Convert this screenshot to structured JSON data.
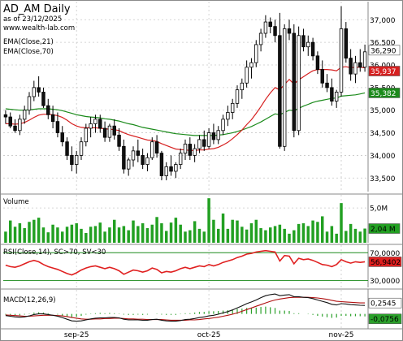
{
  "header": {
    "title": "AD_AM Daily",
    "subtitle": "as of 23/12/2025",
    "source": "www.wealth-lab.com"
  },
  "colors": {
    "up": "#ffffff",
    "down": "#111111",
    "ema21": "#d62020",
    "ema70": "#1a8a1a",
    "volume": "#22a022",
    "rsi": "#e02020",
    "macd": "#111111",
    "signal": "#b01010",
    "hist": "#2aa02a",
    "grid": "#c8c8c8",
    "border": "#8a8a8a"
  },
  "chart_data": [
    {
      "type": "candlestick",
      "panel": "price",
      "legend": [
        "EMA(Close,21)",
        "EMA(Close,70)"
      ],
      "ylim": [
        33200,
        37400
      ],
      "yticks": [
        33500,
        34000,
        34500,
        35000,
        35500,
        36000,
        36500,
        37000
      ],
      "ytick_labels": [
        "33,500",
        "34,000",
        "34,500",
        "35,000",
        "35,500",
        "36,000",
        "36,500",
        "37,000"
      ],
      "x_labels": [
        {
          "i": 15,
          "label": "sep-25"
        },
        {
          "i": 43,
          "label": "oct-25"
        },
        {
          "i": 71,
          "label": "nov-25"
        }
      ],
      "badges": [
        {
          "label": "36,290",
          "value": 36290,
          "color": "#ffffff",
          "text_color": "#000000"
        },
        {
          "label": "35,937",
          "value": 35937,
          "color": "#d62020",
          "text_color": "#ffffff"
        },
        {
          "label": "35,382",
          "value": 35382,
          "color": "#1a8a1a",
          "text_color": "#ffffff"
        }
      ],
      "candles": [
        [
          34900,
          35000,
          34700,
          34850
        ],
        [
          34850,
          34950,
          34600,
          34650
        ],
        [
          34650,
          34800,
          34500,
          34550
        ],
        [
          34550,
          34900,
          34450,
          34800
        ],
        [
          34800,
          35100,
          34700,
          35000
        ],
        [
          35000,
          35400,
          34900,
          35300
        ],
        [
          35300,
          35650,
          35200,
          35500
        ],
        [
          35500,
          35750,
          35300,
          35400
        ],
        [
          35400,
          35500,
          35050,
          35100
        ],
        [
          35100,
          35250,
          34800,
          34900
        ],
        [
          34900,
          35100,
          34600,
          34750
        ],
        [
          34750,
          34950,
          34400,
          34500
        ],
        [
          34500,
          34650,
          34200,
          34300
        ],
        [
          34300,
          34400,
          33900,
          34000
        ],
        [
          34000,
          34200,
          33650,
          33800
        ],
        [
          33800,
          34100,
          33600,
          34000
        ],
        [
          34000,
          34400,
          33900,
          34300
        ],
        [
          34300,
          34700,
          34200,
          34600
        ],
        [
          34600,
          34850,
          34400,
          34700
        ],
        [
          34700,
          34900,
          34500,
          34800
        ],
        [
          34800,
          34900,
          34500,
          34600
        ],
        [
          34600,
          34750,
          34300,
          34400
        ],
        [
          34400,
          34700,
          34300,
          34650
        ],
        [
          34650,
          34800,
          34350,
          34450
        ],
        [
          34450,
          34600,
          34100,
          34200
        ],
        [
          34200,
          34350,
          33600,
          33700
        ],
        [
          33700,
          33950,
          33550,
          33900
        ],
        [
          33900,
          34200,
          33750,
          34100
        ],
        [
          34100,
          34350,
          33850,
          34000
        ],
        [
          34000,
          34150,
          33700,
          33800
        ],
        [
          33800,
          34050,
          33650,
          33950
        ],
        [
          33950,
          34400,
          33900,
          34300
        ],
        [
          34300,
          34450,
          33950,
          34050
        ],
        [
          34050,
          34100,
          33450,
          33550
        ],
        [
          33550,
          33850,
          33450,
          33750
        ],
        [
          33750,
          34000,
          33550,
          33650
        ],
        [
          33650,
          33850,
          33500,
          33800
        ],
        [
          33800,
          34150,
          33700,
          34050
        ],
        [
          34050,
          34350,
          33900,
          34250
        ],
        [
          34250,
          34400,
          33900,
          34000
        ],
        [
          34000,
          34250,
          33850,
          34150
        ],
        [
          34150,
          34450,
          34050,
          34350
        ],
        [
          34350,
          34550,
          34100,
          34200
        ],
        [
          34200,
          34600,
          34150,
          34500
        ],
        [
          34500,
          34700,
          34250,
          34350
        ],
        [
          34350,
          34650,
          34250,
          34550
        ],
        [
          34550,
          34900,
          34450,
          34800
        ],
        [
          34800,
          35100,
          34650,
          34950
        ],
        [
          34950,
          35250,
          34800,
          35150
        ],
        [
          35150,
          35550,
          35050,
          35450
        ],
        [
          35450,
          35700,
          35250,
          35600
        ],
        [
          35600,
          36100,
          35500,
          35950
        ],
        [
          35950,
          36150,
          35700,
          36050
        ],
        [
          36050,
          36550,
          35950,
          36450
        ],
        [
          36450,
          36800,
          36300,
          36700
        ],
        [
          36700,
          37100,
          36600,
          36950
        ],
        [
          36950,
          37050,
          36700,
          36850
        ],
        [
          36850,
          37000,
          36500,
          36650
        ],
        [
          36650,
          37150,
          34150,
          34200
        ],
        [
          34200,
          36900,
          34100,
          36800
        ],
        [
          36800,
          37000,
          36550,
          36700
        ],
        [
          36700,
          36900,
          34400,
          34550
        ],
        [
          34550,
          36850,
          34450,
          36650
        ],
        [
          36650,
          36800,
          36300,
          36400
        ],
        [
          36400,
          36650,
          36200,
          36500
        ],
        [
          36500,
          36600,
          36100,
          36200
        ],
        [
          36200,
          36300,
          35800,
          35900
        ],
        [
          35900,
          36100,
          35500,
          35600
        ],
        [
          35600,
          35800,
          35400,
          35500
        ],
        [
          35500,
          35700,
          35100,
          35200
        ],
        [
          35200,
          35450,
          35050,
          35400
        ],
        [
          35400,
          37300,
          35300,
          36800
        ],
        [
          36800,
          36950,
          36050,
          36150
        ],
        [
          36150,
          36350,
          35650,
          35800
        ],
        [
          35800,
          36200,
          35600,
          36050
        ],
        [
          36050,
          36350,
          35850,
          35950
        ],
        [
          35950,
          36450,
          35850,
          36290
        ]
      ],
      "ema21": [
        34700,
        34700,
        34690,
        34700,
        34730,
        34780,
        34840,
        34890,
        34910,
        34910,
        34900,
        34880,
        34840,
        34780,
        34700,
        34650,
        34620,
        34610,
        34610,
        34610,
        34600,
        34590,
        34580,
        34570,
        34550,
        34500,
        34460,
        34430,
        34400,
        34370,
        34340,
        34330,
        34310,
        34260,
        34220,
        34180,
        34140,
        34130,
        34120,
        34110,
        34110,
        34120,
        34120,
        34140,
        34150,
        34180,
        34230,
        34290,
        34370,
        34460,
        34560,
        34680,
        34790,
        34930,
        35080,
        35240,
        35380,
        35500,
        35450,
        35570,
        35680,
        35580,
        35670,
        35740,
        35810,
        35870,
        35900,
        35900,
        35900,
        35890,
        35870,
        35950,
        35960,
        35940,
        35950,
        35950,
        35937
      ],
      "ema70": [
        35030,
        35020,
        35010,
        35000,
        35000,
        35010,
        35020,
        35030,
        35030,
        35030,
        35020,
        35010,
        34990,
        34960,
        34930,
        34900,
        34880,
        34860,
        34850,
        34840,
        34830,
        34810,
        34800,
        34780,
        34760,
        34730,
        34700,
        34680,
        34650,
        34620,
        34600,
        34580,
        34560,
        34540,
        34520,
        34500,
        34480,
        34470,
        34460,
        34450,
        34440,
        34440,
        34440,
        34440,
        34440,
        34450,
        34460,
        34480,
        34500,
        34530,
        34560,
        34600,
        34640,
        34690,
        34740,
        34800,
        34860,
        34920,
        34900,
        34950,
        35000,
        34990,
        35040,
        35090,
        35130,
        35170,
        35200,
        35220,
        35240,
        35260,
        35270,
        35310,
        35320,
        35330,
        35340,
        35360,
        35382
      ]
    },
    {
      "type": "bar",
      "panel": "volume",
      "legend": [
        "Volume"
      ],
      "ylim": [
        0,
        7.0
      ],
      "yticks": [
        5.0
      ],
      "ytick_labels": [
        "5,0M"
      ],
      "badge": {
        "label": "2,04 M",
        "value": 2.04,
        "color": "#22a022",
        "text_color": "#000000"
      },
      "values": [
        1.6,
        3.2,
        2.3,
        2.8,
        2.1,
        3.0,
        3.3,
        3.6,
        2.2,
        1.5,
        2.6,
        2.2,
        1.6,
        2.3,
        2.6,
        2.8,
        2.0,
        1.4,
        2.3,
        2.4,
        2.9,
        1.6,
        2.2,
        3.3,
        2.2,
        2.4,
        1.8,
        3.2,
        2.4,
        2.8,
        2.1,
        2.6,
        3.7,
        2.8,
        1.7,
        2.9,
        3.6,
        2.6,
        1.6,
        1.8,
        3.1,
        2.0,
        1.6,
        6.4,
        3.3,
        2.0,
        4.2,
        2.0,
        3.3,
        3.2,
        2.3,
        1.9,
        2.8,
        3.3,
        2.1,
        1.8,
        2.2,
        2.4,
        2.6,
        2.0,
        1.3,
        1.8,
        2.7,
        2.8,
        2.4,
        3.2,
        3.0,
        3.8,
        1.6,
        2.4,
        1.3,
        5.7,
        1.7,
        2.7,
        2.0,
        1.6,
        2.04
      ]
    },
    {
      "type": "line",
      "panel": "rsi",
      "legend": [
        "RSI(Close,14), SC>70, SV<30"
      ],
      "ylim": [
        20,
        82
      ],
      "yticks": [
        30,
        70
      ],
      "ytick_labels": [
        "30,0000",
        "70,0000"
      ],
      "badge": {
        "label": "56,9402",
        "value": 56.9402,
        "color": "#e02020",
        "text_color": "#000000"
      },
      "values": [
        52,
        50,
        49,
        51,
        54,
        57,
        59,
        57,
        53,
        50,
        48,
        46,
        43,
        40,
        38,
        41,
        45,
        48,
        50,
        51,
        49,
        47,
        49,
        47,
        44,
        39,
        42,
        45,
        44,
        42,
        44,
        48,
        46,
        41,
        43,
        42,
        44,
        47,
        49,
        47,
        49,
        51,
        50,
        53,
        51,
        53,
        56,
        58,
        60,
        63,
        65,
        68,
        69,
        71,
        72,
        73,
        72,
        71,
        58,
        66,
        65,
        54,
        62,
        60,
        61,
        59,
        56,
        53,
        52,
        50,
        53,
        60,
        57,
        55,
        57,
        56,
        56.94
      ]
    },
    {
      "type": "line",
      "panel": "macd",
      "legend": [
        "MACD(12,26,9)"
      ],
      "ylim": [
        -0.45,
        0.75
      ],
      "badges": [
        {
          "label": "0,2545",
          "value": 0.2545,
          "color": "#ffffff",
          "text_color": "#000000"
        },
        {
          "label": "-0,0756",
          "value": -0.0756,
          "color": "#2aa02a",
          "text_color": "#000000"
        }
      ],
      "macd": [
        -0.05,
        -0.07,
        -0.09,
        -0.1,
        -0.09,
        -0.06,
        -0.02,
        0.0,
        0.0,
        -0.02,
        -0.04,
        -0.07,
        -0.11,
        -0.16,
        -0.21,
        -0.22,
        -0.21,
        -0.18,
        -0.15,
        -0.13,
        -0.12,
        -0.12,
        -0.11,
        -0.11,
        -0.12,
        -0.16,
        -0.18,
        -0.18,
        -0.18,
        -0.19,
        -0.19,
        -0.17,
        -0.16,
        -0.19,
        -0.21,
        -0.22,
        -0.22,
        -0.2,
        -0.17,
        -0.16,
        -0.14,
        -0.11,
        -0.09,
        -0.06,
        -0.04,
        -0.01,
        0.03,
        0.07,
        0.12,
        0.18,
        0.24,
        0.31,
        0.36,
        0.42,
        0.49,
        0.55,
        0.58,
        0.6,
        0.55,
        0.57,
        0.58,
        0.52,
        0.52,
        0.5,
        0.49,
        0.46,
        0.42,
        0.38,
        0.34,
        0.29,
        0.27,
        0.31,
        0.3,
        0.28,
        0.27,
        0.26,
        0.2545
      ],
      "signal": [
        -0.03,
        -0.04,
        -0.05,
        -0.06,
        -0.07,
        -0.07,
        -0.06,
        -0.05,
        -0.04,
        -0.04,
        -0.04,
        -0.05,
        -0.06,
        -0.08,
        -0.11,
        -0.13,
        -0.15,
        -0.16,
        -0.16,
        -0.15,
        -0.15,
        -0.14,
        -0.14,
        -0.13,
        -0.13,
        -0.14,
        -0.15,
        -0.15,
        -0.16,
        -0.16,
        -0.17,
        -0.17,
        -0.17,
        -0.17,
        -0.18,
        -0.19,
        -0.19,
        -0.19,
        -0.19,
        -0.18,
        -0.18,
        -0.17,
        -0.15,
        -0.14,
        -0.12,
        -0.1,
        -0.07,
        -0.04,
        -0.01,
        0.03,
        0.08,
        0.13,
        0.18,
        0.23,
        0.28,
        0.33,
        0.38,
        0.42,
        0.45,
        0.47,
        0.49,
        0.5,
        0.5,
        0.5,
        0.5,
        0.49,
        0.48,
        0.46,
        0.44,
        0.41,
        0.38,
        0.37,
        0.36,
        0.35,
        0.34,
        0.33,
        0.33
      ],
      "hist_value": -0.0756
    }
  ]
}
